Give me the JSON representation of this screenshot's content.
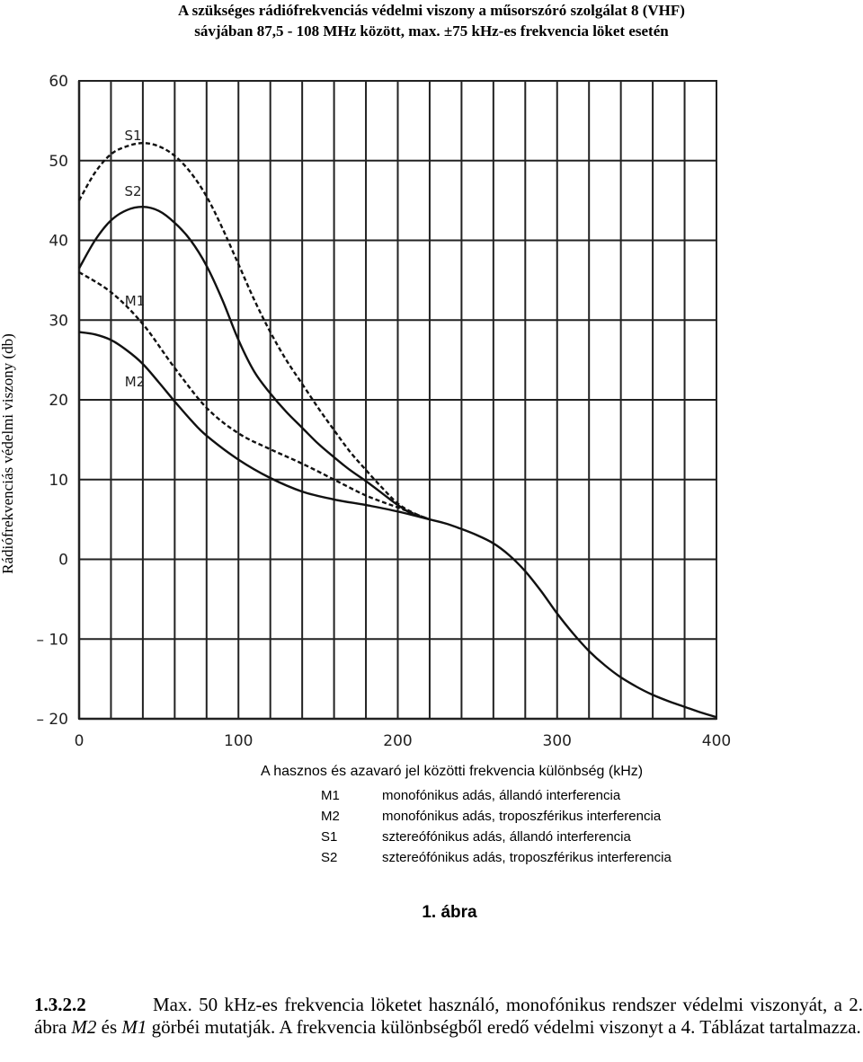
{
  "page": {
    "title_line1": "A szükséges rádiófrekvenciás védelmi viszony a műsorszóró szolgálat 8 (VHF)",
    "title_line2": "sávjában 87,5 - 108 MHz között, max. ±75 kHz-es frekvencia löket esetén",
    "figure_caption": "1. ábra",
    "paragraph": {
      "section": "1.3.2.2",
      "text_part1": "Max. 50 kHz-es frekvencia löketet használó, monofónikus rendszer védelmi viszonyát, a 2. ábra ",
      "em1": "M2",
      "text_part2": " és ",
      "em2": "M1",
      "text_part3": " görbéi mutatják. A frekvencia különbségből eredő védelmi viszonyt a 4. Táblázat tartalmazza."
    }
  },
  "chart_data": {
    "type": "line",
    "title": "A szükséges rádiófrekvenciás védelmi viszony a műsorszóró szolgálat 8 (VHF) sávjában 87,5 - 108 MHz között, max. ±75 kHz-es frekvencia löket esetén",
    "xlabel": "A hasznos és azavaró jel közötti frekvencia különbség (kHz)",
    "ylabel": "Rádiófrekvenciás védelmi viszony (db)",
    "xlim": [
      0,
      400
    ],
    "ylim": [
      -20,
      60
    ],
    "x_ticks": [
      0,
      100,
      200,
      300,
      400
    ],
    "y_ticks": [
      60,
      50,
      40,
      30,
      20,
      10,
      0,
      -10,
      -20
    ],
    "y_tick_labels": [
      "60",
      "50",
      "40",
      "30",
      "20",
      "10",
      "0",
      "– 10",
      "– 20"
    ],
    "grid": true,
    "series": [
      {
        "name": "S1",
        "style": "dashed",
        "x": [
          0,
          10,
          20,
          30,
          40,
          50,
          60,
          70,
          80,
          90,
          100,
          110,
          120,
          130,
          140,
          150,
          160,
          170,
          180,
          190,
          200,
          210,
          220
        ],
        "y": [
          45,
          48.5,
          50.8,
          51.8,
          52.2,
          51.8,
          50.6,
          48.5,
          45.5,
          41.5,
          37,
          32.5,
          28.5,
          25,
          22,
          19,
          16.2,
          13.5,
          11.2,
          9,
          7,
          5.8,
          5
        ]
      },
      {
        "name": "S2",
        "style": "solid",
        "x": [
          0,
          10,
          20,
          30,
          40,
          50,
          60,
          70,
          80,
          90,
          100,
          110,
          120,
          130,
          140,
          150,
          160,
          170,
          180,
          190,
          200,
          210,
          220
        ],
        "y": [
          36.5,
          40,
          42.5,
          43.8,
          44.2,
          43.7,
          42.2,
          40,
          36.8,
          32.5,
          27.5,
          23.5,
          20.8,
          18.5,
          16.5,
          14.5,
          12.8,
          11.2,
          9.8,
          8.3,
          6.8,
          5.6,
          5
        ]
      },
      {
        "name": "M1",
        "style": "dashed",
        "x": [
          0,
          20,
          40,
          60,
          80,
          100,
          120,
          140,
          160,
          180,
          200,
          220
        ],
        "y": [
          36,
          33.5,
          29.5,
          24,
          19,
          15.8,
          13.8,
          12,
          10,
          8,
          6.5,
          5
        ]
      },
      {
        "name": "M2",
        "style": "solid",
        "x": [
          0,
          10,
          20,
          30,
          40,
          50,
          60,
          70,
          80,
          100,
          120,
          140,
          160,
          180,
          200,
          220
        ],
        "y": [
          28.5,
          28.2,
          27.5,
          26.2,
          24.5,
          22.2,
          19.8,
          17.5,
          15.5,
          12.5,
          10.2,
          8.5,
          7.5,
          6.8,
          6,
          5
        ]
      },
      {
        "name": "common",
        "style": "solid",
        "x": [
          220,
          230,
          240,
          250,
          260,
          270,
          280,
          290,
          300,
          310,
          320,
          330,
          340,
          350,
          360,
          370,
          380,
          390,
          400
        ],
        "y": [
          5,
          4.5,
          3.8,
          3,
          2,
          0.5,
          -1.5,
          -4,
          -6.8,
          -9.3,
          -11.5,
          -13.3,
          -14.8,
          -16,
          -17,
          -17.8,
          -18.5,
          -19.2,
          -19.8
        ]
      }
    ],
    "curve_labels": [
      {
        "text": "S1"
      },
      {
        "text": "S2"
      },
      {
        "text": "M1"
      },
      {
        "text": "M2"
      }
    ],
    "legend": [
      {
        "code": "M1",
        "text": "monofónikus adás, állandó interferencia"
      },
      {
        "code": "M2",
        "text": "monofónikus adás, troposzférikus interferencia"
      },
      {
        "code": "S1",
        "text": "sztereófónikus adás, állandó interferencia"
      },
      {
        "code": "S2",
        "text": "sztereófónikus adás, troposzférikus interferencia"
      }
    ]
  }
}
